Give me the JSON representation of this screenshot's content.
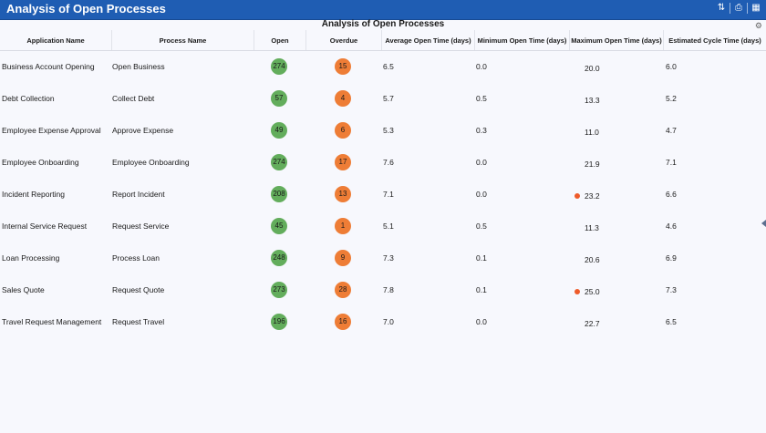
{
  "window": {
    "title": "Analysis of Open Processes"
  },
  "toolbar": {
    "refresh_icon": "refresh-icon",
    "print_icon": "print-icon",
    "menu_icon": "menu-icon"
  },
  "table": {
    "caption": "Analysis of Open Processes",
    "headers": {
      "app": "Application Name",
      "proc": "Process Name",
      "open": "Open",
      "overdue": "Overdue",
      "avg": "Average Open Time (days)",
      "min": "Minimum Open Time (days)",
      "max": "Maximum Open Time (days)",
      "cycle": "Estimated Cycle Time (days)"
    },
    "rows": [
      {
        "app": "Business Account Opening",
        "proc": "Open Business",
        "open": "274",
        "overdue": "15",
        "avg": "6.5",
        "min": "0.0",
        "max": "20.0",
        "max_flag": false,
        "cycle": "6.0"
      },
      {
        "app": "Debt Collection",
        "proc": "Collect Debt",
        "open": "57",
        "overdue": "4",
        "avg": "5.7",
        "min": "0.5",
        "max": "13.3",
        "max_flag": false,
        "cycle": "5.2"
      },
      {
        "app": "Employee Expense Approval",
        "proc": "Approve Expense",
        "open": "49",
        "overdue": "6",
        "avg": "5.3",
        "min": "0.3",
        "max": "11.0",
        "max_flag": false,
        "cycle": "4.7"
      },
      {
        "app": "Employee Onboarding",
        "proc": "Employee Onboarding",
        "open": "274",
        "overdue": "17",
        "avg": "7.6",
        "min": "0.0",
        "max": "21.9",
        "max_flag": false,
        "cycle": "7.1"
      },
      {
        "app": "Incident Reporting",
        "proc": "Report Incident",
        "open": "208",
        "overdue": "13",
        "avg": "7.1",
        "min": "0.0",
        "max": "23.2",
        "max_flag": true,
        "cycle": "6.6"
      },
      {
        "app": "Internal Service Request",
        "proc": "Request Service",
        "open": "45",
        "overdue": "1",
        "avg": "5.1",
        "min": "0.5",
        "max": "11.3",
        "max_flag": false,
        "cycle": "4.6"
      },
      {
        "app": "Loan Processing",
        "proc": "Process Loan",
        "open": "248",
        "overdue": "9",
        "avg": "7.3",
        "min": "0.1",
        "max": "20.6",
        "max_flag": false,
        "cycle": "6.9"
      },
      {
        "app": "Sales Quote",
        "proc": "Request Quote",
        "open": "273",
        "overdue": "28",
        "avg": "7.8",
        "min": "0.1",
        "max": "25.0",
        "max_flag": true,
        "cycle": "7.3"
      },
      {
        "app": "Travel Request Management",
        "proc": "Request Travel",
        "open": "196",
        "overdue": "16",
        "avg": "7.0",
        "min": "0.0",
        "max": "22.7",
        "max_flag": false,
        "cycle": "6.5"
      }
    ]
  },
  "colors": {
    "title_bar": "#1f5db3",
    "open_badge": "#63ad5c",
    "overdue_badge": "#ee7d36",
    "alert_dot": "#ee5b2a"
  }
}
